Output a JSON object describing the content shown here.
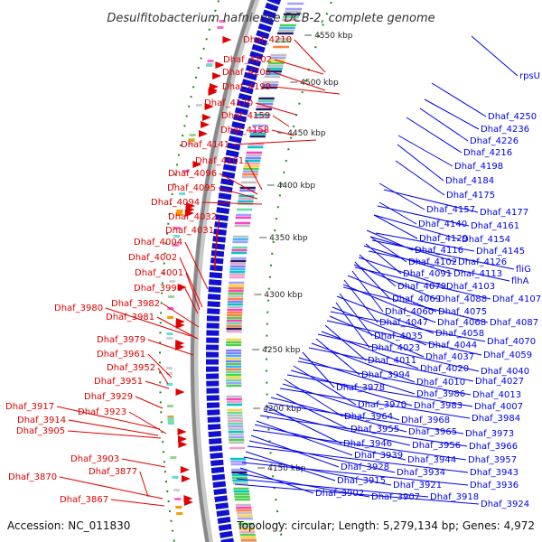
{
  "title": "Desulfitobacterium hafniense DCB-2, complete genome",
  "footer": {
    "accession": "Accession: NC_011830",
    "summary": "Topology: circular; Length: 5,279,134 bp; Genes: 4,972"
  },
  "colors": {
    "forward_gene": "#e00000",
    "reverse_gene": "#0000ee",
    "backbone": "#888888",
    "gc_marks": "#1e8a1e",
    "blue_arrows": "#1010d0"
  },
  "ticks": [
    "4550 kbp",
    "4500 kbp",
    "4450 kbp",
    "4400 kbp",
    "4350 kbp",
    "4300 kbp",
    "4250 kbp",
    "4200 kbp",
    "4150 kbp"
  ],
  "forward_labels": [
    "Dhaf_4210",
    "Dhaf_4202",
    "Dhaf_4200",
    "Dhaf_4199",
    "Dhaf_4170",
    "Dhaf_4159",
    "Dhaf_4158",
    "Dhaf_4141",
    "Dhaf_4101",
    "Dhaf_4096",
    "Dhaf_4095",
    "Dhaf_4094",
    "Dhaf_4032",
    "Dhaf_4031",
    "Dhaf_4004",
    "Dhaf_4002",
    "Dhaf_4001",
    "Dhaf_3996",
    "Dhaf_3982",
    "Dhaf_3980",
    "Dhaf_3981",
    "Dhaf_3979",
    "Dhaf_3961",
    "Dhaf_3952",
    "Dhaf_3951",
    "Dhaf_3929",
    "Dhaf_3917",
    "Dhaf_3923",
    "Dhaf_3914",
    "Dhaf_3905",
    "Dhaf_3903",
    "Dhaf_3877",
    "Dhaf_3870",
    "Dhaf_3867"
  ],
  "reverse_labels": [
    "rpsU",
    "Dhaf_4250",
    "Dhaf_4236",
    "Dhaf_4226",
    "Dhaf_4216",
    "Dhaf_4198",
    "Dhaf_4184",
    "Dhaf_4175",
    "Dhaf_4157",
    "Dhaf_4177",
    "Dhaf_4140",
    "Dhaf_4161",
    "Dhaf_4129",
    "Dhaf_4154",
    "Dhaf_4116",
    "Dhaf_4145",
    "Dhaf_4102",
    "Dhaf_4126",
    "fliG",
    "Dhaf_4091",
    "Dhaf_4113",
    "flhA",
    "Dhaf_4079",
    "Dhaf_4103",
    "Dhaf_4069",
    "Dhaf_4088",
    "Dhaf_4107",
    "Dhaf_4060",
    "Dhaf_4075",
    "Dhaf_4047",
    "Dhaf_4068",
    "Dhaf_4087",
    "Dhaf_4035",
    "Dhaf_4058",
    "Dhaf_4023",
    "Dhaf_4044",
    "Dhaf_4070",
    "Dhaf_4037",
    "Dhaf_4059",
    "Dhaf_4011",
    "Dhaf_4020",
    "Dhaf_4040",
    "Dhaf_3994",
    "Dhaf_4010",
    "Dhaf_4027",
    "Dhaf_3978",
    "Dhaf_3986",
    "Dhaf_4013",
    "Dhaf_3970",
    "Dhaf_3983",
    "Dhaf_4007",
    "Dhaf_3964",
    "Dhaf_3968",
    "Dhaf_3984",
    "Dhaf_3955",
    "Dhaf_3965",
    "Dhaf_3973",
    "Dhaf_3946",
    "Dhaf_3956",
    "Dhaf_3966",
    "Dhaf_3939",
    "Dhaf_3944",
    "Dhaf_3957",
    "Dhaf_3928",
    "Dhaf_3934",
    "Dhaf_3943",
    "Dhaf_3915",
    "Dhaf_3921",
    "Dhaf_3936",
    "Dhaf_3902",
    "Dhaf_3907",
    "Dhaf_3918",
    "Dhaf_3924"
  ]
}
